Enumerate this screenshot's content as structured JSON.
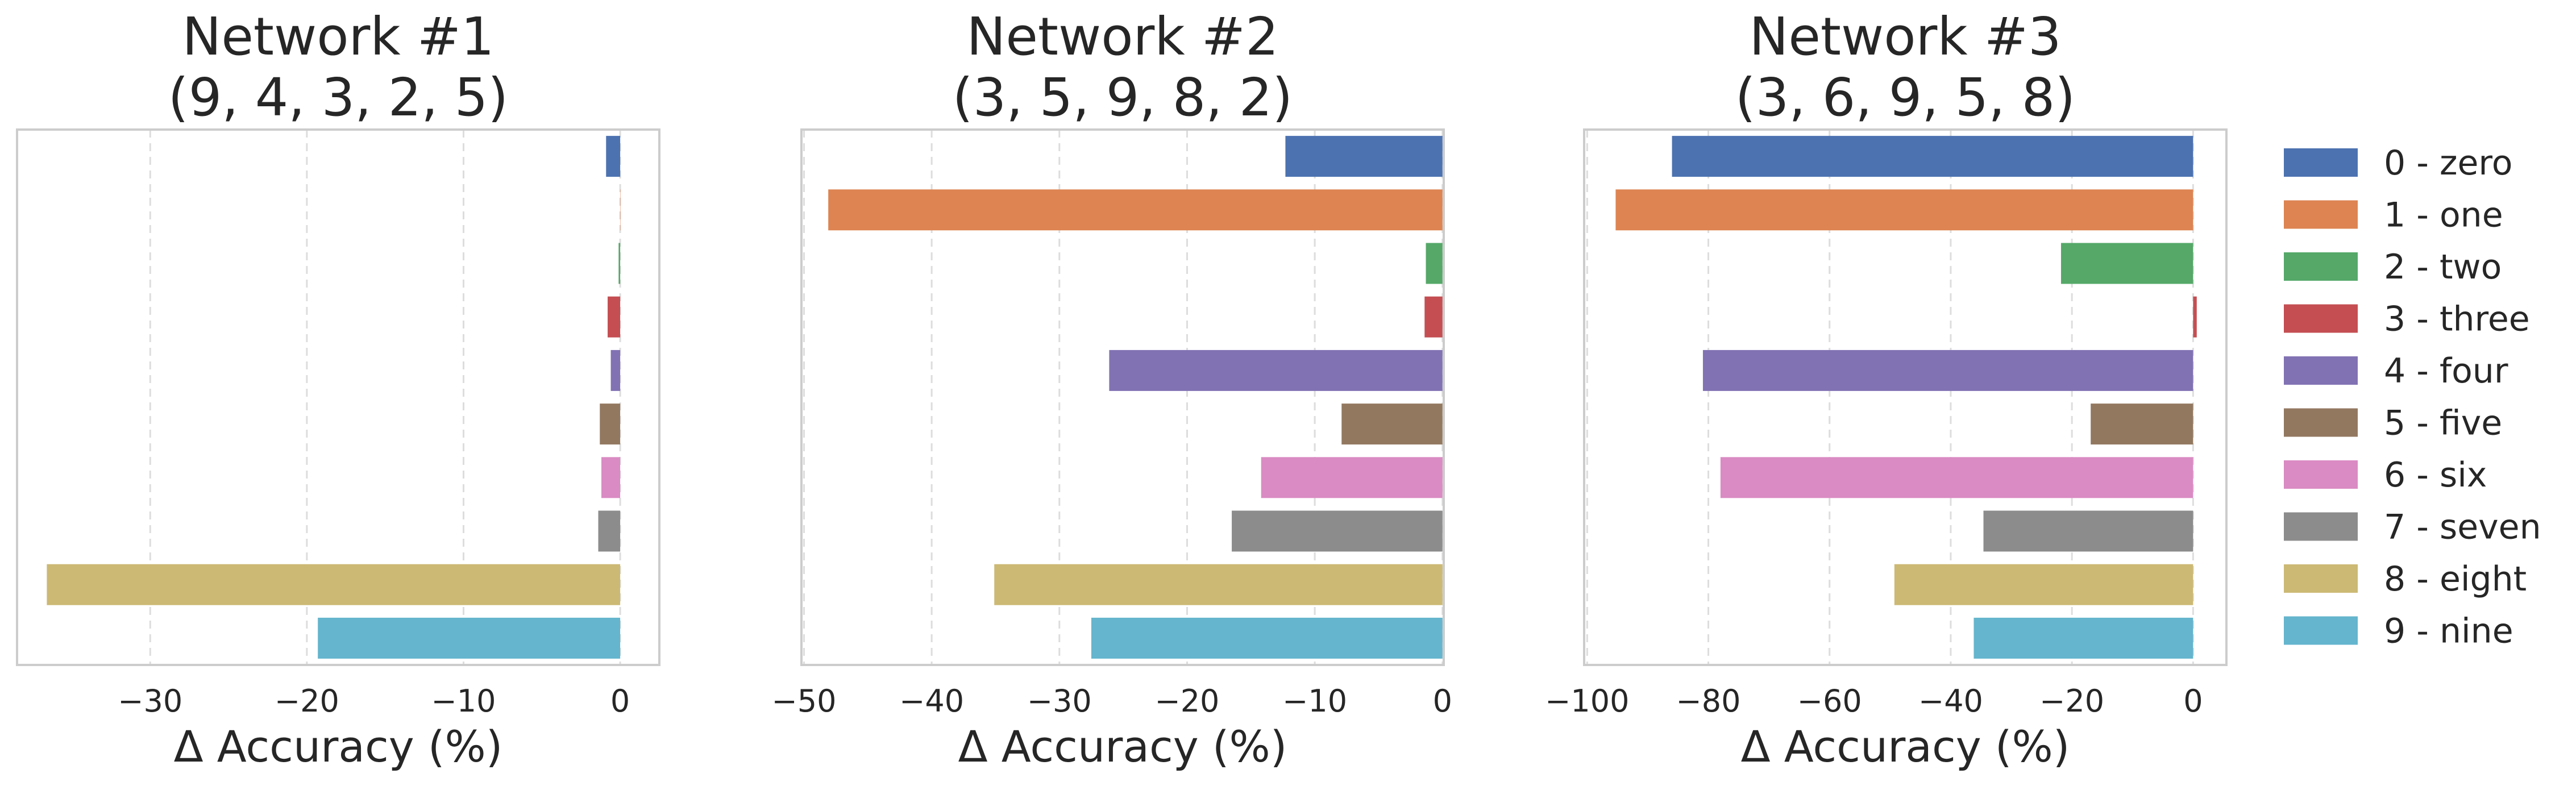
{
  "chart_data": [
    {
      "type": "bar",
      "orientation": "horizontal",
      "title": [
        "Network #1",
        "(9, 4, 3, 2, 5)"
      ],
      "xlabel": "Δ Accuracy (%)",
      "xlim": [
        -38.5,
        2.5
      ],
      "xticks": [
        -30,
        -20,
        -10,
        0
      ],
      "xtick_labels": [
        "−30",
        "−20",
        "−10",
        "0"
      ],
      "categories": [
        "0 - zero",
        "1 - one",
        "2 - two",
        "3 - three",
        "4 - four",
        "5 - five",
        "6 - six",
        "7 - seven",
        "8 - eight",
        "9 - nine"
      ],
      "values": [
        -0.9,
        0.0,
        -0.1,
        -0.8,
        -0.6,
        -1.3,
        -1.2,
        -1.4,
        -36.6,
        -19.3
      ],
      "grid": true
    },
    {
      "type": "bar",
      "orientation": "horizontal",
      "title": [
        "Network #2",
        "(3, 5, 9, 8, 2)"
      ],
      "xlabel": "Δ Accuracy (%)",
      "xlim": [
        -50.2,
        0.1
      ],
      "xticks": [
        -50,
        -40,
        -30,
        -20,
        -10,
        0
      ],
      "xtick_labels": [
        "−50",
        "−40",
        "−30",
        "−20",
        "−10",
        "0"
      ],
      "categories": [
        "0 - zero",
        "1 - one",
        "2 - two",
        "3 - three",
        "4 - four",
        "5 - five",
        "6 - six",
        "7 - seven",
        "8 - eight",
        "9 - nine"
      ],
      "values": [
        -12.3,
        -48.1,
        -1.3,
        -1.4,
        -26.1,
        -7.9,
        -14.2,
        -16.5,
        -35.1,
        -27.5
      ],
      "grid": true
    },
    {
      "type": "bar",
      "orientation": "horizontal",
      "title": [
        "Network #3",
        "(3, 6, 9, 5, 8)"
      ],
      "xlabel": "Δ Accuracy (%)",
      "xlim": [
        -100.5,
        5.5
      ],
      "xticks": [
        -100,
        -80,
        -60,
        -40,
        -20,
        0
      ],
      "xtick_labels": [
        "−100",
        "−80",
        "−60",
        "−40",
        "−20",
        "0"
      ],
      "categories": [
        "0 - zero",
        "1 - one",
        "2 - two",
        "3 - three",
        "4 - four",
        "5 - five",
        "6 - six",
        "7 - seven",
        "8 - eight",
        "9 - nine"
      ],
      "values": [
        -86.0,
        -95.3,
        -21.8,
        0.6,
        -80.9,
        -16.9,
        -78.0,
        -34.6,
        -49.3,
        -36.2
      ],
      "grid": true
    }
  ],
  "legend": {
    "position": "right",
    "entries": [
      "0 - zero",
      "1 - one",
      "2 - two",
      "3 - three",
      "4 - four",
      "5 - five",
      "6 - six",
      "7 - seven",
      "8 - eight",
      "9 - nine"
    ]
  },
  "colors": [
    "#4c72b0",
    "#dd8452",
    "#55a868",
    "#c44e52",
    "#8172b3",
    "#937860",
    "#da8bc3",
    "#8c8c8c",
    "#ccb974",
    "#64b5cd"
  ]
}
